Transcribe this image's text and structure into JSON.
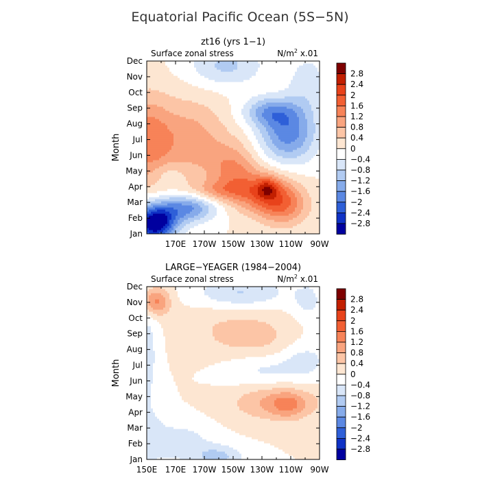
{
  "figure": {
    "title": "Equatorial Pacific Ocean (5S−5N)"
  },
  "chart_data": [
    {
      "type": "heatmap",
      "title": "zt16 (yrs 1−1)",
      "variable": "Surface zonal stress",
      "units_main": "N/m",
      "units_sup": "2",
      "units_scale": " x.01",
      "ylabel": "Month",
      "months": [
        "Jan",
        "Feb",
        "Mar",
        "Apr",
        "May",
        "Jun",
        "Jul",
        "Aug",
        "Sep",
        "Oct",
        "Nov",
        "Dec"
      ],
      "xticks": [
        "170E",
        "170W",
        "150W",
        "130W",
        "110W",
        "90W"
      ],
      "xtick_lons": [
        170,
        190,
        210,
        230,
        250,
        270
      ],
      "xlim": [
        150,
        270
      ],
      "clim": [
        -3.0,
        3.0
      ],
      "features": [
        {
          "lon": 150,
          "month": 0.5,
          "value": -1.2,
          "sx": 14,
          "sy": 1.2
        },
        {
          "lon": 157,
          "month": 0.8,
          "value": -2.3,
          "sx": 9,
          "sy": 0.8
        },
        {
          "lon": 178,
          "month": 1.8,
          "value": -1.7,
          "sx": 14,
          "sy": 0.7
        },
        {
          "lon": 150,
          "month": 6.5,
          "value": 1.3,
          "sx": 12,
          "sy": 2.2
        },
        {
          "lon": 180,
          "month": 6.5,
          "value": 1.0,
          "sx": 18,
          "sy": 2.0
        },
        {
          "lon": 210,
          "month": 4.5,
          "value": 1.1,
          "sx": 12,
          "sy": 1.3
        },
        {
          "lon": 230,
          "month": 2.9,
          "value": 1.5,
          "sx": 14,
          "sy": 1.0
        },
        {
          "lon": 234,
          "month": 3.2,
          "value": 1.0,
          "sx": 5,
          "sy": 0.5
        },
        {
          "lon": 245,
          "month": 2.0,
          "value": 1.3,
          "sx": 12,
          "sy": 1.0
        },
        {
          "lon": 200,
          "month": 3.0,
          "value": 0.8,
          "sx": 14,
          "sy": 0.5
        },
        {
          "lon": 248,
          "month": 7.0,
          "value": -1.8,
          "sx": 14,
          "sy": 1.4
        },
        {
          "lon": 235,
          "month": 8.5,
          "value": -1.2,
          "sx": 13,
          "sy": 0.7
        },
        {
          "lon": 205,
          "month": 11.7,
          "value": -0.9,
          "sx": 18,
          "sy": 1.0
        },
        {
          "lon": 262,
          "month": 10.5,
          "value": -0.6,
          "sx": 10,
          "sy": 1.5
        },
        {
          "lon": 165,
          "month": 4.2,
          "value": -0.4,
          "sx": 8,
          "sy": 0.6
        }
      ]
    },
    {
      "type": "heatmap",
      "title": "LARGE−YEAGER (1984−2004)",
      "variable": "Surface zonal stress",
      "units_main": "N/m",
      "units_sup": "2",
      "units_scale": " x.01",
      "ylabel": "Month",
      "months": [
        "Jan",
        "Feb",
        "Mar",
        "Apr",
        "May",
        "Jun",
        "Jul",
        "Aug",
        "Sep",
        "Oct",
        "Nov",
        "Dec"
      ],
      "xticks": [
        "150E",
        "170E",
        "170W",
        "150W",
        "130W",
        "110W",
        "90W"
      ],
      "xtick_lons": [
        150,
        170,
        190,
        210,
        230,
        250,
        270
      ],
      "xlim": [
        150,
        270
      ],
      "clim": [
        -3.0,
        3.0
      ],
      "features": [
        {
          "lon": 156,
          "month": 11.0,
          "value": 1.4,
          "sx": 7,
          "sy": 0.7
        },
        {
          "lon": 150,
          "month": 7.5,
          "value": -0.6,
          "sx": 6,
          "sy": 3.0
        },
        {
          "lon": 150,
          "month": 1.5,
          "value": -0.5,
          "sx": 10,
          "sy": 1.5
        },
        {
          "lon": 175,
          "month": 1.2,
          "value": -0.6,
          "sx": 14,
          "sy": 1.0
        },
        {
          "lon": 200,
          "month": 0.2,
          "value": -0.9,
          "sx": 12,
          "sy": 0.6
        },
        {
          "lon": 240,
          "month": 4.0,
          "value": 0.9,
          "sx": 22,
          "sy": 0.9
        },
        {
          "lon": 248,
          "month": 3.8,
          "value": 0.7,
          "sx": 8,
          "sy": 0.6
        },
        {
          "lon": 230,
          "month": 6.3,
          "value": -0.6,
          "sx": 20,
          "sy": 0.9
        },
        {
          "lon": 260,
          "month": 7.0,
          "value": -0.5,
          "sx": 12,
          "sy": 1.0
        },
        {
          "lon": 215,
          "month": 11.6,
          "value": -0.9,
          "sx": 22,
          "sy": 0.8
        },
        {
          "lon": 262,
          "month": 11.0,
          "value": -0.5,
          "sx": 8,
          "sy": 1.0
        },
        {
          "lon": 210,
          "month": 9.0,
          "value": 0.45,
          "sx": 25,
          "sy": 1.5
        },
        {
          "lon": 232,
          "month": 8.0,
          "value": 0.3,
          "sx": 18,
          "sy": 1.2
        }
      ]
    }
  ],
  "colorbar": {
    "labels": [
      "2.8",
      "2.4",
      "2",
      "1.6",
      "1.2",
      "0.8",
      "0.4",
      "0",
      "−0.4",
      "−0.8",
      "−1.2",
      "−1.6",
      "−2",
      "−2.4",
      "−2.8"
    ],
    "colors": [
      "#7e0000",
      "#c21f00",
      "#e8421a",
      "#f25f33",
      "#f78358",
      "#f9a47f",
      "#fcc5a6",
      "#fde6d2",
      "#ffffff",
      "#d9e6f8",
      "#b1cbf2",
      "#86abea",
      "#5b88e3",
      "#2e5fd8",
      "#0f32c6",
      "#00009f"
    ]
  }
}
